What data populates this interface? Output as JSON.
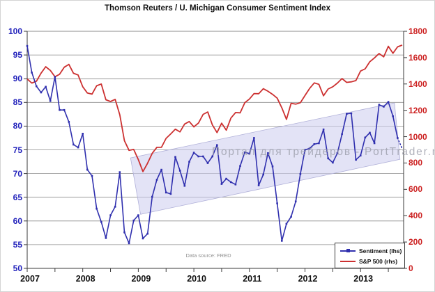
{
  "title": "Thomson Reuters / U. Michigan Consumer Sentiment Index",
  "watermark_text": "Портал для трейдеров - PortTrader.ru",
  "source_note": "Data source: FRED",
  "legend": {
    "items": [
      {
        "label": "Sentiment (lhs)",
        "color": "#2f2fae",
        "marker": true
      },
      {
        "label": "S&P 500 (rhs)",
        "color": "#cc3030",
        "marker": false
      }
    ]
  },
  "colors": {
    "sentiment_line": "#2f2fae",
    "sp500_line": "#cc3030",
    "left_axis_labels": "#2222bb",
    "right_axis_labels": "#cc2222",
    "gridline": "#8c8c8c",
    "axis_line": "#3a3a3a",
    "channel_fill": "#ccccee",
    "channel_edge": "#b0b0d8"
  },
  "chart_data": {
    "type": "line",
    "title": "Thomson Reuters / U. Michigan Consumer Sentiment Index",
    "frequency": "monthly",
    "x_start": "2007-01",
    "x_end": "2013-10",
    "x_tick_years": [
      2007,
      2008,
      2009,
      2010,
      2011,
      2012,
      2013
    ],
    "left_axis": {
      "ticks": [
        100,
        95,
        90,
        85,
        80,
        75,
        70,
        65,
        60,
        55,
        50
      ],
      "range": [
        50,
        100
      ]
    },
    "right_axis": {
      "ticks": [
        1800,
        1600,
        1400,
        1200,
        1000,
        800,
        600,
        400,
        200,
        0
      ],
      "range": [
        0,
        1800
      ]
    },
    "grid": "horizontal",
    "legend_position": "bottom-right",
    "series": [
      {
        "name": "Sentiment (lhs)",
        "axis": "left",
        "markers": true,
        "dashed_tail_points": 1,
        "values": [
          96.9,
          91.3,
          88.4,
          87.1,
          88.3,
          85.3,
          90.4,
          83.4,
          83.4,
          80.9,
          76.1,
          75.5,
          78.4,
          70.8,
          69.5,
          62.6,
          59.8,
          56.4,
          61.2,
          63.0,
          70.3,
          57.6,
          55.3,
          60.1,
          61.2,
          56.3,
          57.3,
          65.1,
          68.7,
          70.8,
          66.0,
          65.7,
          73.5,
          70.6,
          67.4,
          72.5,
          74.4,
          73.6,
          73.6,
          72.2,
          73.6,
          76.0,
          67.8,
          68.9,
          68.2,
          67.7,
          71.6,
          74.5,
          74.2,
          77.5,
          67.5,
          69.8,
          74.3,
          71.5,
          63.7,
          55.8,
          59.4,
          60.9,
          64.1,
          69.9,
          75.0,
          75.3,
          76.2,
          76.4,
          79.3,
          73.2,
          72.3,
          74.3,
          78.3,
          82.6,
          82.7,
          72.9,
          73.8,
          77.6,
          78.6,
          76.4,
          84.5,
          84.1,
          85.1,
          82.1,
          77.5,
          75.2
        ]
      },
      {
        "name": "S&P 500 (rhs)",
        "axis": "right",
        "markers": false,
        "dashed_tail_points": 0,
        "values": [
          1438,
          1407,
          1421,
          1482,
          1531,
          1503,
          1455,
          1474,
          1527,
          1549,
          1481,
          1468,
          1379,
          1331,
          1323,
          1386,
          1400,
          1280,
          1267,
          1283,
          1166,
          969,
          896,
          903,
          826,
          735,
          798,
          873,
          919,
          919,
          987,
          1021,
          1057,
          1036,
          1096,
          1115,
          1074,
          1104,
          1169,
          1187,
          1089,
          1031,
          1102,
          1049,
          1141,
          1183,
          1181,
          1258,
          1286,
          1327,
          1326,
          1364,
          1345,
          1321,
          1292,
          1219,
          1131,
          1253,
          1247,
          1258,
          1312,
          1366,
          1408,
          1398,
          1310,
          1362,
          1379,
          1407,
          1441,
          1412,
          1416,
          1426,
          1498,
          1515,
          1569,
          1598,
          1631,
          1606,
          1686,
          1633,
          1682,
          1695
        ]
      }
    ],
    "trend_channel": {
      "shape": "rising shaded band",
      "top_edge": {
        "x0_year": 2008.86,
        "value0": 73.3,
        "x1_year": 2013.61,
        "value1": 84.9
      },
      "bottom_edge": {
        "x0_year": 2009.04,
        "value0": 61.4,
        "x1_year": 2013.71,
        "value1": 73.0
      }
    }
  }
}
